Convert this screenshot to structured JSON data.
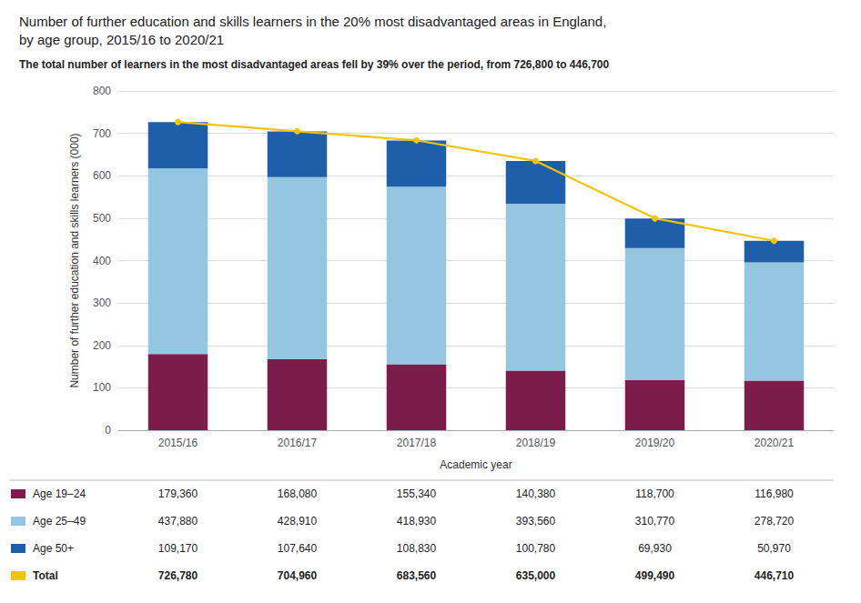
{
  "chart_data": {
    "type": "bar",
    "title": "Number of further education and skills learners in the 20% most disadvantaged areas in England,\nby age group, 2015/16 to 2020/21",
    "subtitle": "The total number of learners in the most disadvantaged areas fell by 39% over the period, from 726,800 to 446,700",
    "xlabel": "Academic year",
    "ylabel": "Number of further education and skills learners (000)",
    "categories": [
      "2015/16",
      "2016/17",
      "2017/18",
      "2018/19",
      "2019/20",
      "2020/21"
    ],
    "stacked": true,
    "grid": true,
    "ylim": [
      0,
      800
    ],
    "yticks": [
      0,
      100,
      200,
      300,
      400,
      500,
      600,
      700,
      800
    ],
    "series": [
      {
        "name": "Age 19–24",
        "type": "bar",
        "color": "#7B1C4A",
        "values": [
          179.36,
          168.08,
          155.34,
          140.38,
          118.7,
          116.98
        ],
        "value_labels": [
          "179,360",
          "168,080",
          "155,340",
          "140,380",
          "118,700",
          "116,980"
        ]
      },
      {
        "name": "Age 25–49",
        "type": "bar",
        "color": "#93C6E0",
        "values": [
          437.88,
          428.91,
          418.93,
          393.56,
          310.77,
          278.72
        ],
        "value_labels": [
          "437,880",
          "428,910",
          "418,930",
          "393,560",
          "310,770",
          "278,720"
        ]
      },
      {
        "name": "Age 50+",
        "type": "bar",
        "color": "#1F5EA8",
        "values": [
          109.17,
          107.64,
          108.83,
          100.78,
          69.93,
          50.97
        ],
        "value_labels": [
          "109,170",
          "107,640",
          "108,830",
          "100,780",
          "69,930",
          "50,970"
        ]
      },
      {
        "name": "Total",
        "type": "line",
        "color": "#F5C400",
        "marker": "circle",
        "values": [
          726.78,
          704.96,
          683.56,
          635,
          499.49,
          446.71
        ],
        "value_labels": [
          "726,780",
          "704,960",
          "683,560",
          "635,000",
          "499,490",
          "446,710"
        ]
      }
    ]
  }
}
